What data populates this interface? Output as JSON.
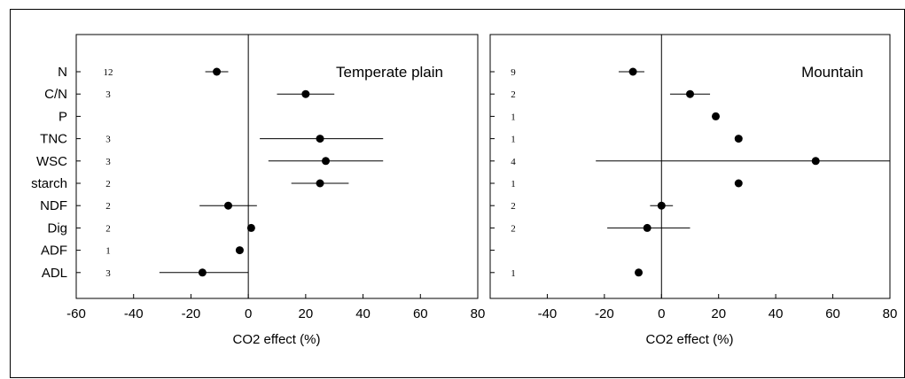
{
  "chart_data": [
    {
      "type": "scatter",
      "subtype": "forest-plot",
      "title": "Temperate plain",
      "xlabel": "CO2 effect (%)",
      "xlim": [
        -60,
        80
      ],
      "xticks": [
        -60,
        -40,
        -20,
        0,
        20,
        40,
        60,
        80
      ],
      "categories": [
        "N",
        "C/N",
        "P",
        "TNC",
        "WSC",
        "starch",
        "NDF",
        "Dig",
        "ADF",
        "ADL"
      ],
      "n": [
        "12",
        "3",
        "",
        "3",
        "3",
        "2",
        "2",
        "2",
        "1",
        "3"
      ],
      "values": [
        -11,
        20,
        null,
        25,
        27,
        25,
        -7,
        1,
        -3,
        -16
      ],
      "ci_low": [
        -15,
        10,
        null,
        4,
        7,
        15,
        -17,
        null,
        null,
        -31
      ],
      "ci_high": [
        -7,
        30,
        null,
        47,
        47,
        35,
        3,
        null,
        null,
        0
      ],
      "reference_line": 0
    },
    {
      "type": "scatter",
      "subtype": "forest-plot",
      "title": "Mountain",
      "xlabel": "CO2 effect (%)",
      "xlim": [
        -60,
        80
      ],
      "xticks": [
        -40,
        -20,
        0,
        20,
        40,
        60,
        80
      ],
      "categories": [
        "N",
        "C/N",
        "P",
        "TNC",
        "WSC",
        "starch",
        "NDF",
        "Dig",
        "ADF",
        "ADL"
      ],
      "n": [
        "9",
        "2",
        "1",
        "1",
        "4",
        "1",
        "2",
        "2",
        "",
        "1"
      ],
      "values": [
        -10,
        10,
        19,
        27,
        54,
        27,
        0,
        -5,
        null,
        -8
      ],
      "ci_low": [
        -15,
        3,
        null,
        null,
        -23,
        null,
        -4,
        -19,
        null,
        null
      ],
      "ci_high": [
        -6,
        17,
        null,
        null,
        80,
        null,
        4,
        10,
        null,
        null
      ],
      "reference_line": 0
    }
  ]
}
